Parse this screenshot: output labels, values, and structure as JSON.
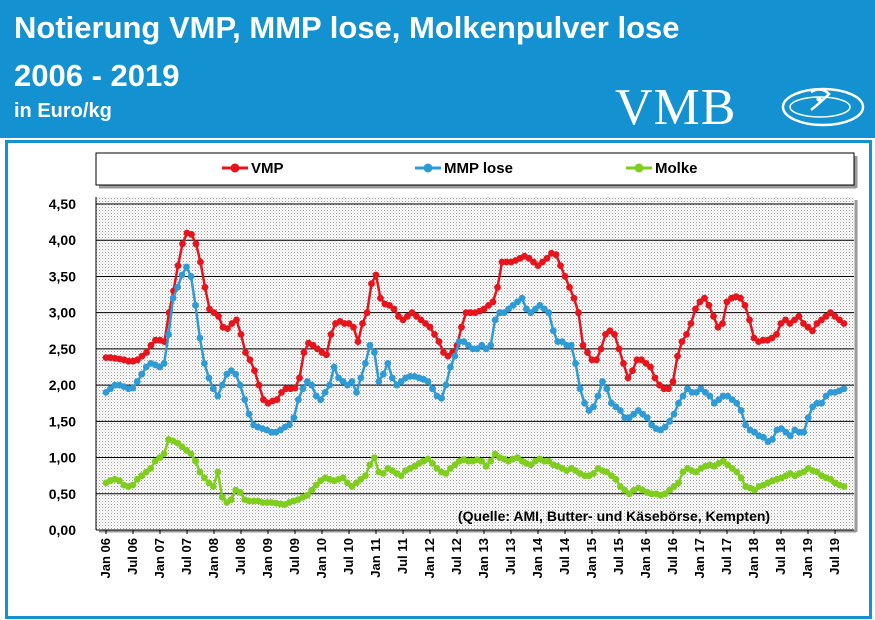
{
  "header": {
    "title_line1": "Notierung VMP, MMP lose, Molkenpulver lose",
    "title_line2": "2006 - 2019",
    "unit": "in Euro/kg",
    "logo_text": "VMB"
  },
  "colors": {
    "header_bg": "#1391d0",
    "vmp": "#e8131b",
    "mmp": "#2e9bd6",
    "molke": "#7fce1d"
  },
  "chart_data": {
    "type": "line",
    "title": "Notierung VMP, MMP lose, Molkenpulver lose 2006 - 2019",
    "ylabel": "Euro/kg",
    "ylim": [
      0,
      4.5
    ],
    "yticks": [
      "0,00",
      "0,50",
      "1,00",
      "1,50",
      "2,00",
      "2,50",
      "3,00",
      "3,50",
      "4,00",
      "4,50"
    ],
    "xlabels": [
      "Jan 06",
      "Jul 06",
      "Jan 07",
      "Jul 07",
      "Jan 08",
      "Jul 08",
      "Jan 09",
      "Jul 09",
      "Jan 10",
      "Jul 10",
      "Jan 11",
      "Jul 11",
      "Jan 12",
      "Jul 12",
      "Jan 13",
      "Jul 13",
      "Jan 14",
      "Jul 14",
      "Jan 15",
      "Jul 15",
      "Jan 16",
      "Jul 16",
      "Jan 17",
      "Jul 17",
      "Jan 18",
      "Jul 18",
      "Jan 19",
      "Jul 19"
    ],
    "x_start": "Jan 06",
    "x_end": "Aug 19",
    "legend_position": "top",
    "source_note": "(Quelle: AMI, Butter- und Käsebörse, Kempten)",
    "series": [
      {
        "name": "VMP",
        "color": "#e8131b",
        "values": [
          2.38,
          2.38,
          2.37,
          2.36,
          2.35,
          2.33,
          2.33,
          2.35,
          2.4,
          2.45,
          2.55,
          2.62,
          2.62,
          2.6,
          3.0,
          3.3,
          3.65,
          3.95,
          4.1,
          4.08,
          3.95,
          3.7,
          3.35,
          3.05,
          3.0,
          2.95,
          2.8,
          2.78,
          2.85,
          2.9,
          2.7,
          2.45,
          2.35,
          2.2,
          2.0,
          1.8,
          1.75,
          1.78,
          1.8,
          1.9,
          1.95,
          1.95,
          1.96,
          2.1,
          2.45,
          2.58,
          2.55,
          2.5,
          2.45,
          2.42,
          2.7,
          2.85,
          2.88,
          2.85,
          2.85,
          2.8,
          2.6,
          2.85,
          3.0,
          3.4,
          3.52,
          3.2,
          3.12,
          3.1,
          3.05,
          2.95,
          2.9,
          2.95,
          3.0,
          2.95,
          2.9,
          2.85,
          2.8,
          2.7,
          2.6,
          2.45,
          2.4,
          2.45,
          2.55,
          2.8,
          3.0,
          3.0,
          3.0,
          3.02,
          3.05,
          3.1,
          3.15,
          3.35,
          3.7,
          3.7,
          3.7,
          3.72,
          3.75,
          3.78,
          3.75,
          3.7,
          3.65,
          3.7,
          3.75,
          3.82,
          3.8,
          3.65,
          3.5,
          3.35,
          3.2,
          3.0,
          2.55,
          2.45,
          2.35,
          2.35,
          2.5,
          2.7,
          2.75,
          2.7,
          2.5,
          2.3,
          2.1,
          2.2,
          2.35,
          2.35,
          2.3,
          2.25,
          2.1,
          2.0,
          1.95,
          1.95,
          2.05,
          2.4,
          2.6,
          2.7,
          2.85,
          3.05,
          3.15,
          3.2,
          3.1,
          2.95,
          2.8,
          2.85,
          3.15,
          3.2,
          3.22,
          3.2,
          3.1,
          2.9,
          2.65,
          2.6,
          2.62,
          2.62,
          2.65,
          2.7,
          2.85,
          2.9,
          2.85,
          2.9,
          2.95,
          2.85,
          2.8,
          2.75,
          2.85,
          2.9,
          2.95,
          3.0,
          2.95,
          2.9,
          2.85
        ]
      },
      {
        "name": "MMP lose",
        "color": "#2e9bd6",
        "values": [
          1.9,
          1.95,
          2.0,
          2.0,
          1.98,
          1.95,
          1.96,
          2.05,
          2.15,
          2.25,
          2.3,
          2.28,
          2.25,
          2.3,
          2.7,
          3.2,
          3.35,
          3.52,
          3.63,
          3.5,
          3.1,
          2.65,
          2.3,
          2.1,
          1.95,
          1.85,
          2.0,
          2.15,
          2.2,
          2.15,
          2.0,
          1.8,
          1.6,
          1.45,
          1.42,
          1.4,
          1.38,
          1.35,
          1.35,
          1.38,
          1.42,
          1.45,
          1.55,
          1.8,
          1.95,
          2.05,
          2.0,
          1.85,
          1.8,
          1.9,
          2.0,
          2.25,
          2.1,
          2.05,
          2.0,
          2.05,
          1.9,
          2.1,
          2.3,
          2.55,
          2.45,
          2.05,
          2.15,
          2.3,
          2.1,
          2.0,
          2.05,
          2.1,
          2.12,
          2.12,
          2.1,
          2.08,
          2.05,
          1.95,
          1.85,
          1.82,
          2.0,
          2.25,
          2.4,
          2.6,
          2.6,
          2.55,
          2.5,
          2.5,
          2.55,
          2.5,
          2.55,
          2.9,
          3.0,
          3.0,
          3.05,
          3.1,
          3.15,
          3.2,
          3.05,
          3.0,
          3.05,
          3.1,
          3.05,
          3.0,
          2.75,
          2.6,
          2.6,
          2.55,
          2.55,
          2.3,
          1.95,
          1.75,
          1.65,
          1.7,
          1.85,
          2.05,
          1.95,
          1.75,
          1.7,
          1.65,
          1.55,
          1.55,
          1.6,
          1.65,
          1.6,
          1.55,
          1.45,
          1.4,
          1.38,
          1.42,
          1.5,
          1.6,
          1.75,
          1.85,
          1.95,
          1.9,
          1.9,
          1.95,
          1.9,
          1.85,
          1.75,
          1.8,
          1.85,
          1.85,
          1.8,
          1.75,
          1.65,
          1.45,
          1.38,
          1.35,
          1.3,
          1.28,
          1.22,
          1.25,
          1.38,
          1.4,
          1.35,
          1.3,
          1.38,
          1.35,
          1.35,
          1.55,
          1.7,
          1.75,
          1.75,
          1.85,
          1.9,
          1.9,
          1.92,
          1.95
        ]
      },
      {
        "name": "Molke",
        "color": "#7fce1d",
        "values": [
          0.65,
          0.68,
          0.7,
          0.68,
          0.62,
          0.6,
          0.62,
          0.7,
          0.75,
          0.8,
          0.85,
          0.95,
          1.0,
          1.05,
          1.25,
          1.23,
          1.2,
          1.15,
          1.1,
          1.05,
          0.95,
          0.8,
          0.72,
          0.65,
          0.6,
          0.8,
          0.45,
          0.38,
          0.42,
          0.55,
          0.52,
          0.42,
          0.4,
          0.4,
          0.4,
          0.38,
          0.38,
          0.38,
          0.37,
          0.36,
          0.35,
          0.38,
          0.4,
          0.42,
          0.45,
          0.48,
          0.55,
          0.62,
          0.68,
          0.72,
          0.7,
          0.68,
          0.7,
          0.72,
          0.65,
          0.6,
          0.65,
          0.7,
          0.75,
          0.9,
          1.0,
          0.8,
          0.78,
          0.85,
          0.82,
          0.78,
          0.75,
          0.82,
          0.85,
          0.88,
          0.92,
          0.95,
          0.98,
          0.92,
          0.85,
          0.8,
          0.78,
          0.85,
          0.9,
          0.95,
          0.97,
          0.95,
          0.95,
          0.97,
          0.95,
          0.88,
          0.95,
          1.05,
          1.0,
          0.98,
          0.95,
          0.98,
          1.0,
          0.95,
          0.92,
          0.9,
          0.95,
          0.98,
          0.95,
          0.95,
          0.9,
          0.88,
          0.85,
          0.82,
          0.85,
          0.82,
          0.78,
          0.75,
          0.75,
          0.78,
          0.85,
          0.82,
          0.8,
          0.75,
          0.7,
          0.6,
          0.55,
          0.5,
          0.55,
          0.58,
          0.55,
          0.52,
          0.5,
          0.5,
          0.48,
          0.5,
          0.55,
          0.6,
          0.65,
          0.8,
          0.85,
          0.82,
          0.8,
          0.85,
          0.88,
          0.9,
          0.88,
          0.92,
          0.95,
          0.9,
          0.85,
          0.8,
          0.72,
          0.6,
          0.58,
          0.55,
          0.6,
          0.62,
          0.65,
          0.68,
          0.7,
          0.72,
          0.75,
          0.78,
          0.75,
          0.78,
          0.8,
          0.85,
          0.82,
          0.8,
          0.75,
          0.72,
          0.7,
          0.65,
          0.62,
          0.6
        ]
      }
    ]
  }
}
